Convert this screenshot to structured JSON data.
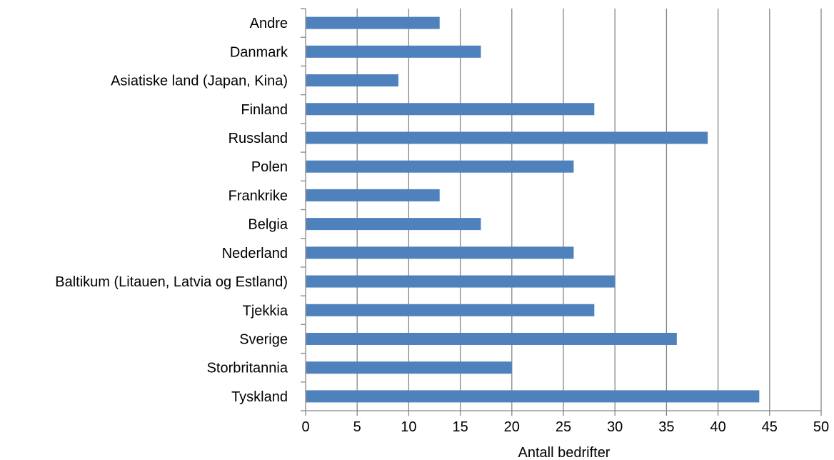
{
  "chart_data": {
    "type": "bar",
    "orientation": "horizontal",
    "categories": [
      "Andre",
      "Danmark",
      "Asiatiske land (Japan, Kina)",
      "Finland",
      "Russland",
      "Polen",
      "Frankrike",
      "Belgia",
      "Nederland",
      "Baltikum (Litauen, Latvia og Estland)",
      "Tjekkia",
      "Sverige",
      "Storbritannia",
      "Tyskland"
    ],
    "values": [
      13,
      17,
      9,
      28,
      39,
      26,
      13,
      17,
      26,
      30,
      28,
      36,
      20,
      44
    ],
    "xlabel": "Antall bedrifter",
    "ylabel": "",
    "title": "",
    "xlim": [
      0,
      50
    ],
    "xticks": [
      "0",
      "5",
      "10",
      "15",
      "20",
      "25",
      "30",
      "35",
      "40",
      "45",
      "50"
    ],
    "grid": "vertical",
    "legend": "none",
    "bar_color": "#4F81BD",
    "grid_color": "#868686",
    "axis_color": "#868686"
  }
}
